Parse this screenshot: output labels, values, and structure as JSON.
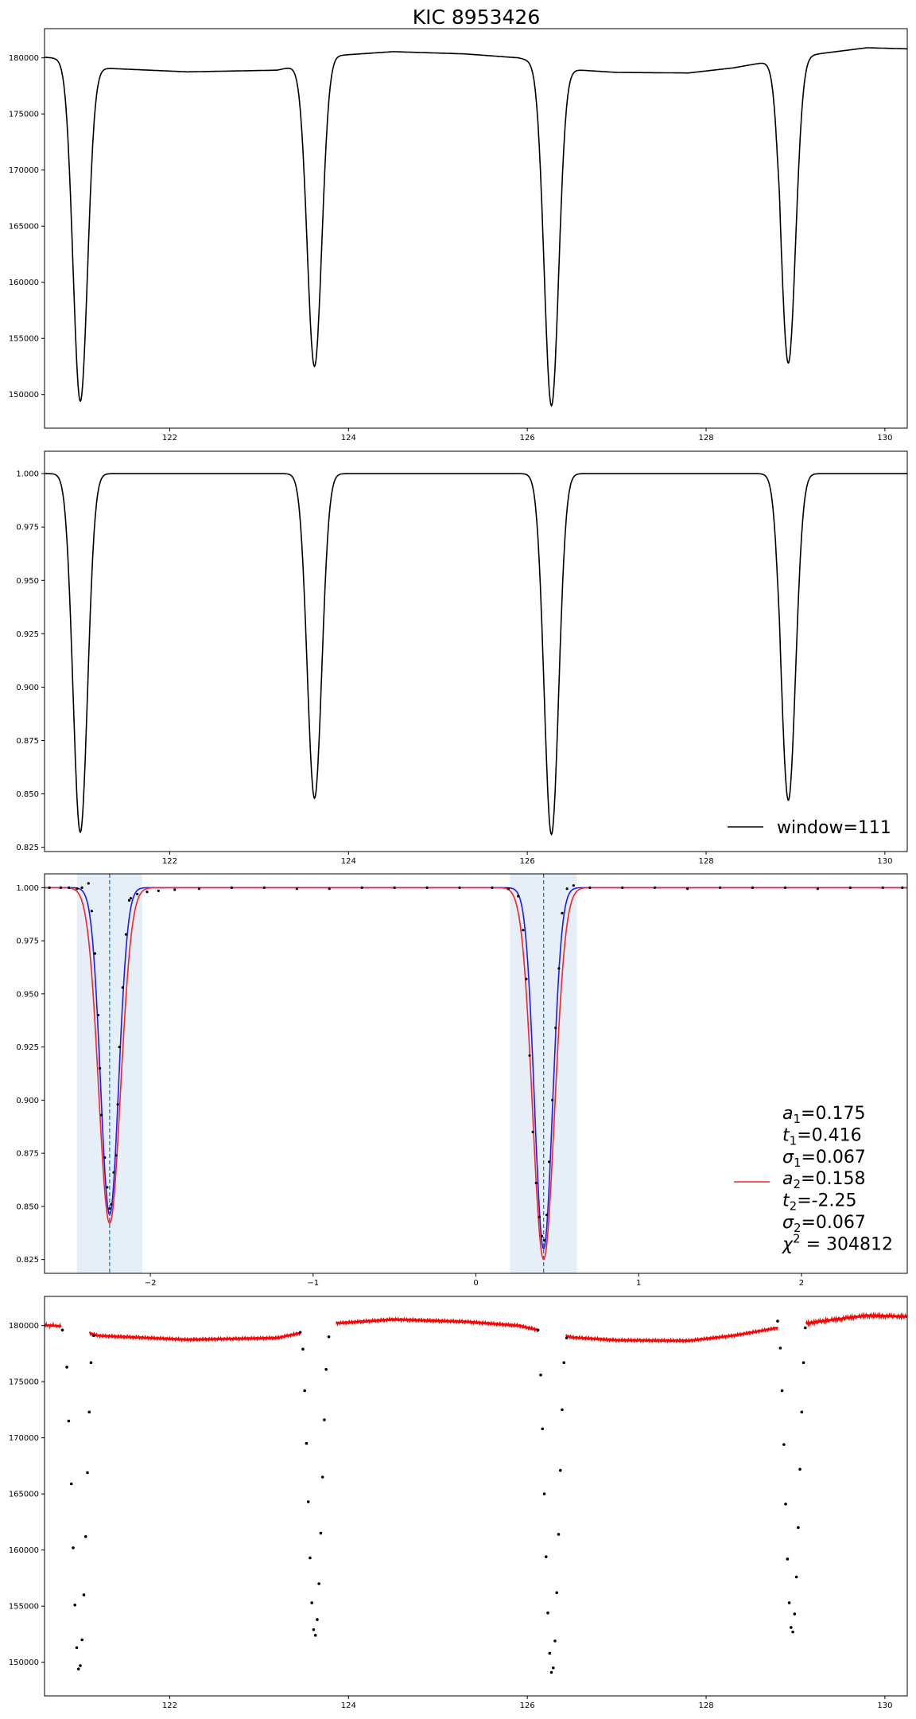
{
  "title": "KIC 8953426",
  "chart_data": [
    {
      "id": "raw",
      "type": "line",
      "xlim": [
        120.6,
        130.25
      ],
      "ylim": [
        147000,
        182600
      ],
      "xticks": [
        122,
        124,
        126,
        128,
        130
      ],
      "yticks": [
        150000,
        155000,
        160000,
        165000,
        170000,
        175000,
        180000
      ],
      "baseline": [
        [
          120.6,
          180050
        ],
        [
          120.85,
          179900
        ],
        [
          121.2,
          179100
        ],
        [
          122.2,
          178750
        ],
        [
          123.2,
          178900
        ],
        [
          123.5,
          179400
        ],
        [
          123.85,
          180200
        ],
        [
          124.5,
          180550
        ],
        [
          125.3,
          180350
        ],
        [
          125.9,
          180000
        ],
        [
          126.3,
          179300
        ],
        [
          126.5,
          178950
        ],
        [
          127.0,
          178700
        ],
        [
          127.8,
          178650
        ],
        [
          128.3,
          179100
        ],
        [
          128.8,
          179800
        ],
        [
          129.3,
          180400
        ],
        [
          129.8,
          180900
        ],
        [
          130.25,
          180800
        ]
      ],
      "dips": [
        {
          "t": 121.0,
          "min": 149400
        },
        {
          "t": 123.62,
          "min": 152500
        },
        {
          "t": 126.27,
          "min": 149000
        },
        {
          "t": 128.92,
          "min": 152800
        }
      ],
      "spike": {
        "t": 128.82,
        "value": 180600
      },
      "color": "#000000"
    },
    {
      "id": "normalized",
      "type": "line",
      "xlim": [
        120.6,
        130.25
      ],
      "ylim": [
        0.823,
        1.0105
      ],
      "xticks": [
        122,
        124,
        126,
        128,
        130
      ],
      "yticks": [
        0.825,
        0.85,
        0.875,
        0.9,
        0.925,
        0.95,
        0.975,
        1.0
      ],
      "baseline": 1.0,
      "dips": [
        {
          "t": 121.0,
          "min": 0.832
        },
        {
          "t": 123.62,
          "min": 0.848
        },
        {
          "t": 126.27,
          "min": 0.831
        },
        {
          "t": 128.92,
          "min": 0.847
        }
      ],
      "spike": {
        "t": 128.82,
        "value": 1.003
      },
      "legend": [
        {
          "label": "window=111",
          "color": "#000000"
        }
      ],
      "legend_position": "bottom-right",
      "color": "#000000"
    },
    {
      "id": "phase-fit",
      "type": "line",
      "xlim": [
        -2.65,
        2.65
      ],
      "ylim": [
        0.8185,
        1.0065
      ],
      "xticks": [
        -2,
        -1,
        0,
        1,
        2
      ],
      "xtick_labels": [
        "−2",
        "−1",
        "0",
        "1",
        "2"
      ],
      "yticks": [
        0.825,
        0.85,
        0.875,
        0.9,
        0.925,
        0.95,
        0.975,
        1.0
      ],
      "vlines": [
        -2.25,
        0.416
      ],
      "spans": [
        [
          -2.45,
          -2.05
        ],
        [
          0.21,
          0.62
        ]
      ],
      "series": [
        {
          "color": "#1a1aff",
          "eclipses": [
            {
              "t": -2.25,
              "a": 0.154,
              "sigma": 0.055
            },
            {
              "t": 0.416,
              "a": 0.17,
              "sigma": 0.055
            }
          ]
        },
        {
          "color": "#ff2020",
          "eclipses": [
            {
              "t": -2.25,
              "a": 0.158,
              "sigma": 0.067
            },
            {
              "t": 0.416,
              "a": 0.175,
              "sigma": 0.067
            }
          ]
        }
      ],
      "points": [
        [
          -2.62,
          1.0
        ],
        [
          -2.55,
          1.0
        ],
        [
          -2.5,
          1.0
        ],
        [
          -2.45,
          0.9995
        ],
        [
          -2.42,
          1.0
        ],
        [
          -2.38,
          1.002
        ],
        [
          -2.36,
          0.989
        ],
        [
          -2.34,
          0.969
        ],
        [
          -2.32,
          0.94
        ],
        [
          -2.31,
          0.915
        ],
        [
          -2.3,
          0.893
        ],
        [
          -2.28,
          0.873
        ],
        [
          -2.265,
          0.859
        ],
        [
          -2.25,
          0.849
        ],
        [
          -2.24,
          0.851
        ],
        [
          -2.225,
          0.866
        ],
        [
          -2.21,
          0.874
        ],
        [
          -2.2,
          0.898
        ],
        [
          -2.19,
          0.925
        ],
        [
          -2.17,
          0.953
        ],
        [
          -2.15,
          0.978
        ],
        [
          -2.13,
          0.994
        ],
        [
          -2.12,
          0.995
        ],
        [
          -2.08,
          0.997
        ],
        [
          -2.02,
          0.998
        ],
        [
          -1.95,
          0.9985
        ],
        [
          -1.85,
          0.999
        ],
        [
          -1.7,
          0.9995
        ],
        [
          -1.5,
          1.0
        ],
        [
          -1.3,
          1.0
        ],
        [
          -1.1,
          0.9995
        ],
        [
          -0.9,
          0.9995
        ],
        [
          -0.7,
          1.0
        ],
        [
          -0.5,
          1.0
        ],
        [
          -0.3,
          1.0
        ],
        [
          -0.1,
          1.0
        ],
        [
          0.1,
          1.0
        ],
        [
          0.2,
          0.9995
        ],
        [
          0.26,
          0.996
        ],
        [
          0.29,
          0.98
        ],
        [
          0.31,
          0.957
        ],
        [
          0.33,
          0.921
        ],
        [
          0.35,
          0.885
        ],
        [
          0.37,
          0.861
        ],
        [
          0.39,
          0.845
        ],
        [
          0.405,
          0.836
        ],
        [
          0.42,
          0.834
        ],
        [
          0.435,
          0.846
        ],
        [
          0.45,
          0.871
        ],
        [
          0.47,
          0.9
        ],
        [
          0.49,
          0.934
        ],
        [
          0.51,
          0.962
        ],
        [
          0.53,
          0.988
        ],
        [
          0.56,
          0.9995
        ],
        [
          0.6,
          1.001
        ],
        [
          0.7,
          1.0
        ],
        [
          0.9,
          1.0
        ],
        [
          1.1,
          1.0
        ],
        [
          1.3,
          0.9995
        ],
        [
          1.5,
          1.0
        ],
        [
          1.7,
          1.0
        ],
        [
          1.9,
          1.0
        ],
        [
          2.1,
          0.9995
        ],
        [
          2.3,
          1.0
        ],
        [
          2.5,
          1.0
        ],
        [
          2.62,
          1.0
        ]
      ],
      "legend": [
        {
          "color": "#ff2020",
          "lines": [
            {
              "sym": "a",
              "sub": "1",
              "val": "=0.175"
            },
            {
              "sym": "t",
              "sub": "1",
              "val": "=0.416"
            },
            {
              "sym": "σ",
              "sub": "1",
              "val": "=0.067"
            },
            {
              "sym": "a",
              "sub": "2",
              "val": "=0.158"
            },
            {
              "sym": "t",
              "sub": "2",
              "val": "=-2.25"
            },
            {
              "sym": "σ",
              "sub": "2",
              "val": "=0.067"
            },
            {
              "sym": "χ",
              "sup": "2",
              "val": " = 304812"
            }
          ]
        }
      ],
      "legend_position": "lower-right"
    },
    {
      "id": "detrended-points",
      "type": "scatter",
      "xlim": [
        120.6,
        130.25
      ],
      "ylim": [
        147000,
        182600
      ],
      "xticks": [
        122,
        124,
        126,
        128,
        130
      ],
      "yticks": [
        150000,
        155000,
        160000,
        165000,
        170000,
        175000,
        180000
      ],
      "red_segments": [
        [
          120.6,
          120.78
        ],
        [
          121.1,
          123.46
        ],
        [
          123.86,
          126.12
        ],
        [
          126.43,
          128.8
        ],
        [
          129.12,
          130.25
        ]
      ],
      "black_points": [
        [
          120.8,
          179600
        ],
        [
          120.85,
          176300
        ],
        [
          120.87,
          171500
        ],
        [
          120.9,
          165900
        ],
        [
          120.92,
          160200
        ],
        [
          120.94,
          155100
        ],
        [
          120.96,
          151300
        ],
        [
          120.98,
          149400
        ],
        [
          121.0,
          149700
        ],
        [
          121.02,
          152000
        ],
        [
          121.04,
          156000
        ],
        [
          121.06,
          161200
        ],
        [
          121.08,
          166900
        ],
        [
          121.1,
          172300
        ],
        [
          121.12,
          176700
        ],
        [
          121.15,
          179100
        ],
        [
          123.46,
          179400
        ],
        [
          123.49,
          177900
        ],
        [
          123.51,
          174200
        ],
        [
          123.53,
          169500
        ],
        [
          123.55,
          164300
        ],
        [
          123.57,
          159300
        ],
        [
          123.59,
          155300
        ],
        [
          123.61,
          152900
        ],
        [
          123.63,
          152400
        ],
        [
          123.65,
          153800
        ],
        [
          123.67,
          157000
        ],
        [
          123.69,
          161500
        ],
        [
          123.71,
          166500
        ],
        [
          123.73,
          171600
        ],
        [
          123.75,
          176100
        ],
        [
          123.78,
          179000
        ],
        [
          126.12,
          179600
        ],
        [
          126.15,
          175600
        ],
        [
          126.17,
          170800
        ],
        [
          126.19,
          165000
        ],
        [
          126.21,
          159400
        ],
        [
          126.23,
          154400
        ],
        [
          126.25,
          150800
        ],
        [
          126.27,
          149100
        ],
        [
          126.29,
          149500
        ],
        [
          126.31,
          151900
        ],
        [
          126.33,
          156200
        ],
        [
          126.35,
          161400
        ],
        [
          126.37,
          167100
        ],
        [
          126.39,
          172500
        ],
        [
          126.41,
          176700
        ],
        [
          126.44,
          178900
        ],
        [
          128.8,
          180400
        ],
        [
          128.83,
          178000
        ],
        [
          128.85,
          174200
        ],
        [
          128.87,
          169400
        ],
        [
          128.89,
          164100
        ],
        [
          128.91,
          159200
        ],
        [
          128.93,
          155300
        ],
        [
          128.95,
          153100
        ],
        [
          128.97,
          152700
        ],
        [
          128.99,
          154300
        ],
        [
          129.01,
          157600
        ],
        [
          129.03,
          162000
        ],
        [
          129.05,
          167200
        ],
        [
          129.07,
          172300
        ],
        [
          129.09,
          176700
        ],
        [
          129.11,
          179800
        ]
      ]
    }
  ]
}
